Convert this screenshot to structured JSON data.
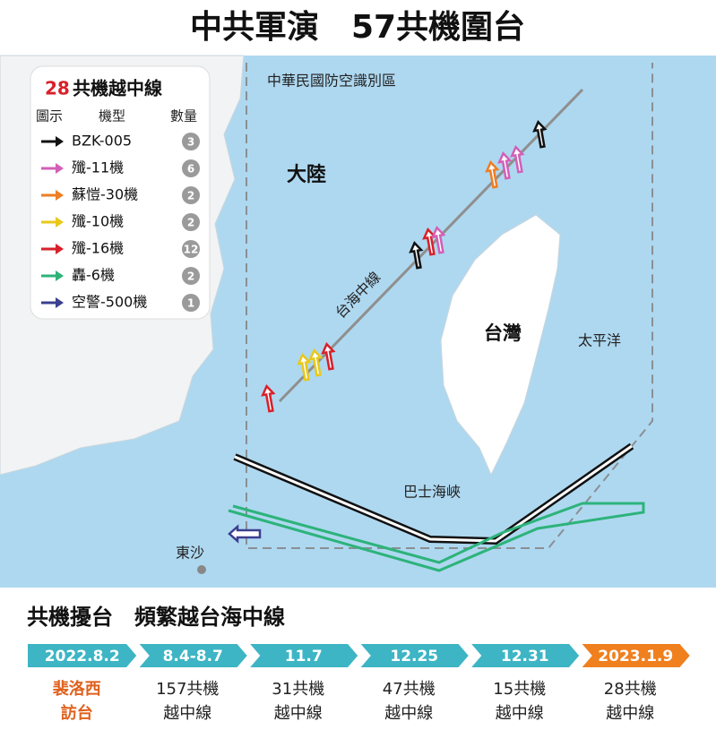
{
  "title": "中共軍演　57共機圍台",
  "legend": {
    "count": "28",
    "title": "共機越中線",
    "headers": [
      "圖示",
      "機型",
      "數量"
    ],
    "items": [
      {
        "name": "BZK-005",
        "count": "3",
        "color": "#111111"
      },
      {
        "name": "殲-11機",
        "count": "6",
        "color": "#d35fb7"
      },
      {
        "name": "蘇愷-30機",
        "count": "2",
        "color": "#ef7d22"
      },
      {
        "name": "殲-10機",
        "count": "2",
        "color": "#e8c81a"
      },
      {
        "name": "殲-16機",
        "count": "12",
        "color": "#d8202a"
      },
      {
        "name": "轟-6機",
        "count": "2",
        "color": "#2db37a"
      },
      {
        "name": "空警-500機",
        "count": "1",
        "color": "#3b3f8f"
      }
    ]
  },
  "map": {
    "adiz": "中華民國防空識別區",
    "mainland": "大陸",
    "median_line": "台海中線",
    "taiwan": "台灣",
    "pacific": "太平洋",
    "bashi": "巴士海峽",
    "dongsha": "東沙"
  },
  "timeline": {
    "title": "共機擾台　頻繁越台海中線",
    "events": [
      {
        "date": "2022.8.2",
        "lines": [
          "裴洛西",
          "訪台"
        ]
      },
      {
        "date": "8.4-8.7",
        "lines": [
          "157共機",
          "越中線"
        ]
      },
      {
        "date": "11.7",
        "lines": [
          "31共機",
          "越中線"
        ]
      },
      {
        "date": "12.25",
        "lines": [
          "47共機",
          "越中線"
        ]
      },
      {
        "date": "12.31",
        "lines": [
          "15共機",
          "越中線"
        ]
      },
      {
        "date": "2023.1.9",
        "lines": [
          "28共機",
          "越中線"
        ]
      }
    ]
  }
}
